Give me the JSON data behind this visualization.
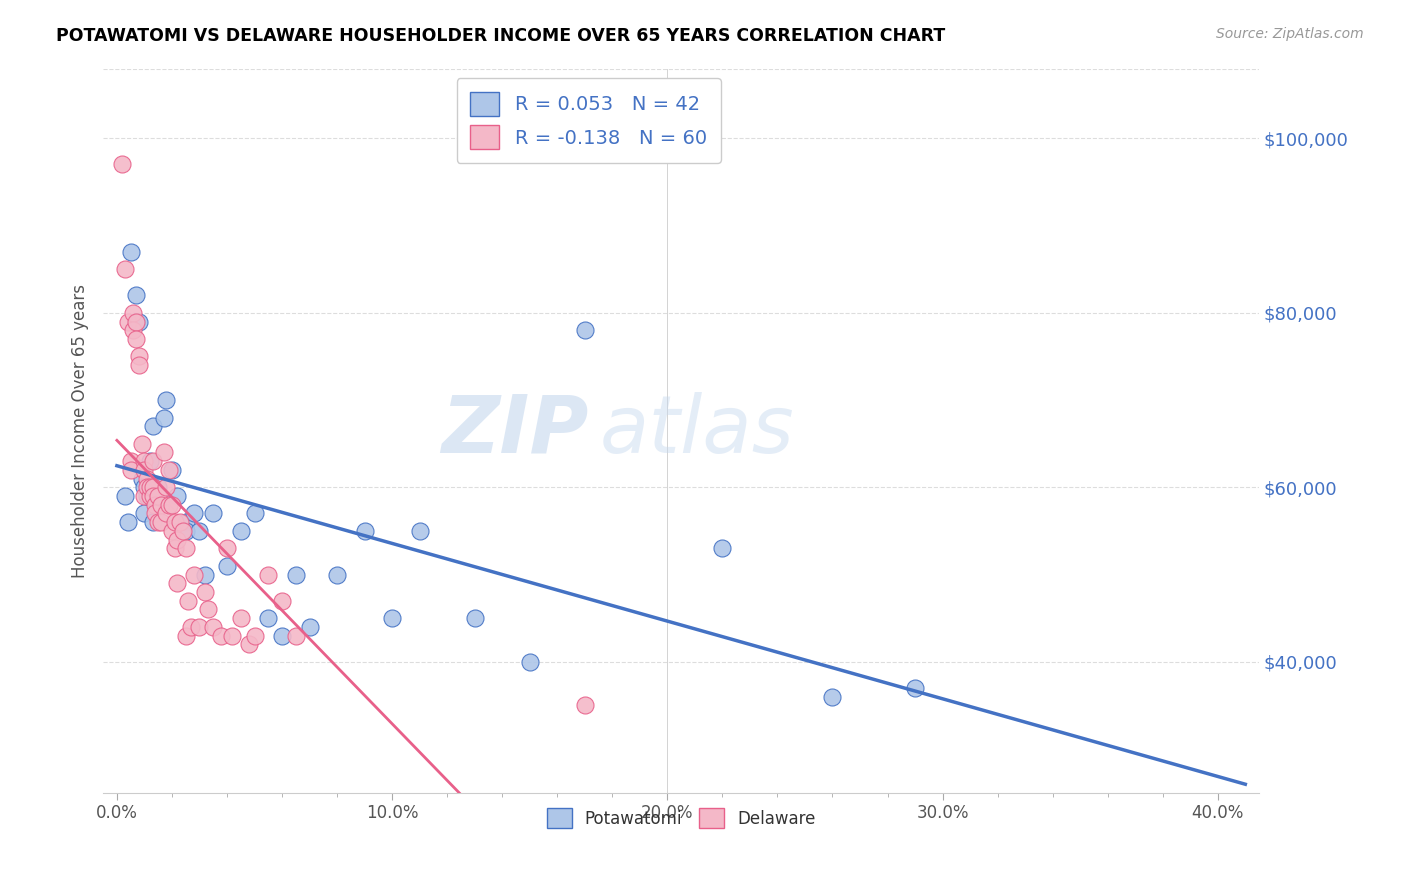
{
  "title": "POTAWATOMI VS DELAWARE HOUSEHOLDER INCOME OVER 65 YEARS CORRELATION CHART",
  "source": "Source: ZipAtlas.com",
  "xlabel_ticks": [
    "0.0%",
    "",
    "",
    "",
    "",
    "10.0%",
    "",
    "",
    "",
    "",
    "20.0%",
    "",
    "",
    "",
    "",
    "30.0%",
    "",
    "",
    "",
    "",
    "40.0%"
  ],
  "xlabel_tick_vals": [
    0.0,
    0.02,
    0.04,
    0.06,
    0.08,
    0.1,
    0.12,
    0.14,
    0.16,
    0.18,
    0.2,
    0.22,
    0.24,
    0.26,
    0.28,
    0.3,
    0.32,
    0.34,
    0.36,
    0.38,
    0.4
  ],
  "ylabel": "Householder Income Over 65 years",
  "ylabel_ticks": [
    "$40,000",
    "$60,000",
    "$80,000",
    "$100,000"
  ],
  "ylabel_tick_vals": [
    40000,
    60000,
    80000,
    100000
  ],
  "ylim": [
    25000,
    108000
  ],
  "xlim": [
    -0.005,
    0.415
  ],
  "legend_label1": "Potawatomi",
  "legend_label2": "Delaware",
  "R1": 0.053,
  "N1": 42,
  "R2": -0.138,
  "N2": 60,
  "color_blue": "#aec6e8",
  "color_pink": "#f4b8c8",
  "line_blue": "#4472c4",
  "line_pink": "#e8608a",
  "line_dashed_color": "#e8b0c0",
  "watermark_zip": "ZIP",
  "watermark_atlas": "atlas",
  "potawatomi_x": [
    0.003,
    0.004,
    0.005,
    0.007,
    0.007,
    0.008,
    0.009,
    0.01,
    0.01,
    0.011,
    0.012,
    0.013,
    0.013,
    0.015,
    0.015,
    0.017,
    0.018,
    0.02,
    0.022,
    0.025,
    0.025,
    0.028,
    0.03,
    0.032,
    0.035,
    0.04,
    0.045,
    0.05,
    0.055,
    0.06,
    0.065,
    0.07,
    0.08,
    0.09,
    0.1,
    0.11,
    0.13,
    0.15,
    0.17,
    0.22,
    0.26,
    0.29
  ],
  "potawatomi_y": [
    59000,
    56000,
    87000,
    79000,
    82000,
    79000,
    61000,
    57000,
    60000,
    59000,
    63000,
    67000,
    56000,
    60000,
    59000,
    68000,
    70000,
    62000,
    59000,
    56000,
    55000,
    57000,
    55000,
    50000,
    57000,
    51000,
    55000,
    57000,
    45000,
    43000,
    50000,
    44000,
    50000,
    55000,
    45000,
    55000,
    45000,
    40000,
    78000,
    53000,
    36000,
    37000
  ],
  "delaware_x": [
    0.002,
    0.003,
    0.004,
    0.005,
    0.005,
    0.006,
    0.006,
    0.007,
    0.007,
    0.008,
    0.008,
    0.009,
    0.01,
    0.01,
    0.01,
    0.011,
    0.011,
    0.012,
    0.012,
    0.013,
    0.013,
    0.013,
    0.014,
    0.014,
    0.015,
    0.015,
    0.016,
    0.016,
    0.017,
    0.018,
    0.018,
    0.019,
    0.019,
    0.02,
    0.02,
    0.021,
    0.021,
    0.022,
    0.022,
    0.023,
    0.024,
    0.025,
    0.025,
    0.026,
    0.027,
    0.028,
    0.03,
    0.032,
    0.033,
    0.035,
    0.038,
    0.04,
    0.042,
    0.045,
    0.048,
    0.05,
    0.055,
    0.06,
    0.065,
    0.17
  ],
  "delaware_y": [
    97000,
    85000,
    79000,
    63000,
    62000,
    80000,
    78000,
    79000,
    77000,
    75000,
    74000,
    65000,
    63000,
    62000,
    59000,
    61000,
    60000,
    59000,
    60000,
    63000,
    60000,
    59000,
    58000,
    57000,
    59000,
    56000,
    58000,
    56000,
    64000,
    60000,
    57000,
    62000,
    58000,
    58000,
    55000,
    56000,
    53000,
    54000,
    49000,
    56000,
    55000,
    43000,
    53000,
    47000,
    44000,
    50000,
    44000,
    48000,
    46000,
    44000,
    43000,
    53000,
    43000,
    45000,
    42000,
    43000,
    50000,
    47000,
    43000,
    35000
  ]
}
